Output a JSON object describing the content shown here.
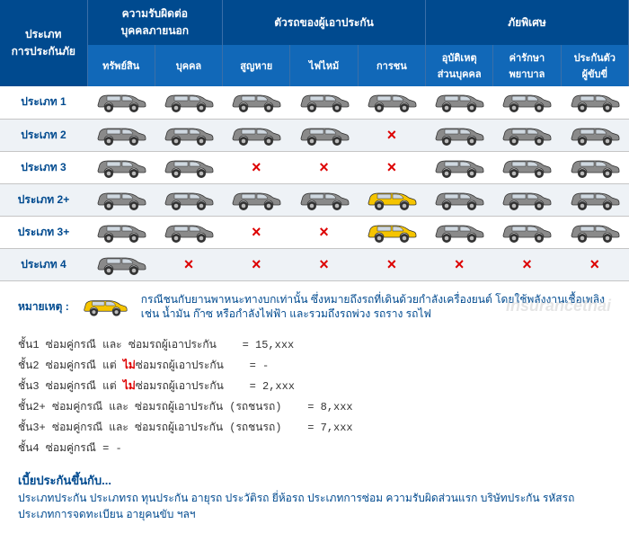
{
  "header": {
    "groups": [
      {
        "label": "ประเภท\nการประกันภัย",
        "rowspan": 2
      },
      {
        "label": "ความรับผิดต่อ\nบุคคลภายนอก",
        "colspan": 2
      },
      {
        "label": "ตัวรถของผู้เอาประกัน",
        "colspan": 3
      },
      {
        "label": "ภัยพิเศษ",
        "colspan": 3
      }
    ],
    "sub": [
      "ทรัพย์สิน",
      "บุคคล",
      "สูญหาย",
      "ไฟไหม้",
      "การชน",
      "อุบัติเหตุ\nส่วนบุคคล",
      "ค่ารักษา\nพยาบาล",
      "ประกันตัว\nผู้ขับขี่"
    ]
  },
  "rows": [
    {
      "label": "ประเภท 1",
      "cells": [
        "g",
        "g",
        "g",
        "g",
        "g",
        "g",
        "g",
        "g"
      ]
    },
    {
      "label": "ประเภท 2",
      "cells": [
        "g",
        "g",
        "g",
        "g",
        "x",
        "g",
        "g",
        "g"
      ]
    },
    {
      "label": "ประเภท 3",
      "cells": [
        "g",
        "g",
        "x",
        "x",
        "x",
        "g",
        "g",
        "g"
      ]
    },
    {
      "label": "ประเภท 2+",
      "cells": [
        "g",
        "g",
        "g",
        "g",
        "y",
        "g",
        "g",
        "g"
      ]
    },
    {
      "label": "ประเภท 3+",
      "cells": [
        "g",
        "g",
        "x",
        "x",
        "y",
        "g",
        "g",
        "g"
      ]
    },
    {
      "label": "ประเภท 4",
      "cells": [
        "g",
        "x",
        "x",
        "x",
        "x",
        "x",
        "x",
        "x"
      ]
    }
  ],
  "note": {
    "label": "หมายเหตุ :",
    "text": "กรณีชนกับยานพาหนะทางบกเท่านั้น ซึ่งหมายถึงรถที่เดินด้วยกำลังเครื่องยนต์ โดยใช้พลังงานเชื้อเพลิง เช่น น้ำมัน ก๊าซ หรือกำลังไฟฟ้า และรวมถึงรถพ่วง รถราง รถไฟ"
  },
  "tiers": [
    {
      "a": "ชั้น1",
      "b": "ซ่อมคู่กรณี และ ซ่อมรถผู้เอาประกัน",
      "c": "= 15,xxx",
      "neg": false
    },
    {
      "a": "ชั้น2",
      "b": "ซ่อมคู่กรณี แต่ <neg>ไม่</neg>ซ่อมรถผู้เอาประกัน",
      "c": "= -",
      "neg": true
    },
    {
      "a": "ชั้น3",
      "b": "ซ่อมคู่กรณี แต่ <neg>ไม่</neg>ซ่อมรถผู้เอาประกัน",
      "c": "= 2,xxx",
      "neg": true
    },
    {
      "a": "ชั้น2+",
      "b": "ซ่อมคู่กรณี และ ซ่อมรถผู้เอาประกัน (รถชนรถ)",
      "c": "= 8,xxx",
      "neg": false
    },
    {
      "a": "ชั้น3+",
      "b": "ซ่อมคู่กรณี และ ซ่อมรถผู้เอาประกัน (รถชนรถ)",
      "c": "= 7,xxx",
      "neg": false
    },
    {
      "a": "ชั้น4",
      "b": "ซ่อมคู่กรณี = -",
      "c": "",
      "neg": false
    }
  ],
  "premium": {
    "title": "เบี้ยประกันขึ้นกับ...",
    "text": "ประเภทประกัน ประเภทรถ ทุนประกัน อายุรถ ประวัติรถ ยี่ห้อรถ ประเภทการซ่อม ความรับผิดส่วนแรก บริษัทประกัน รหัสรถ ประเภทการจดทะเบียน อายุคนขับ ฯลฯ"
  },
  "watermark": "insurancethai",
  "colors": {
    "header_bg": "#004a8f",
    "subheader_bg": "#1168b8",
    "gray_car": "#8a8a8a",
    "yellow_car": "#f5c400",
    "cross": "#d00"
  }
}
